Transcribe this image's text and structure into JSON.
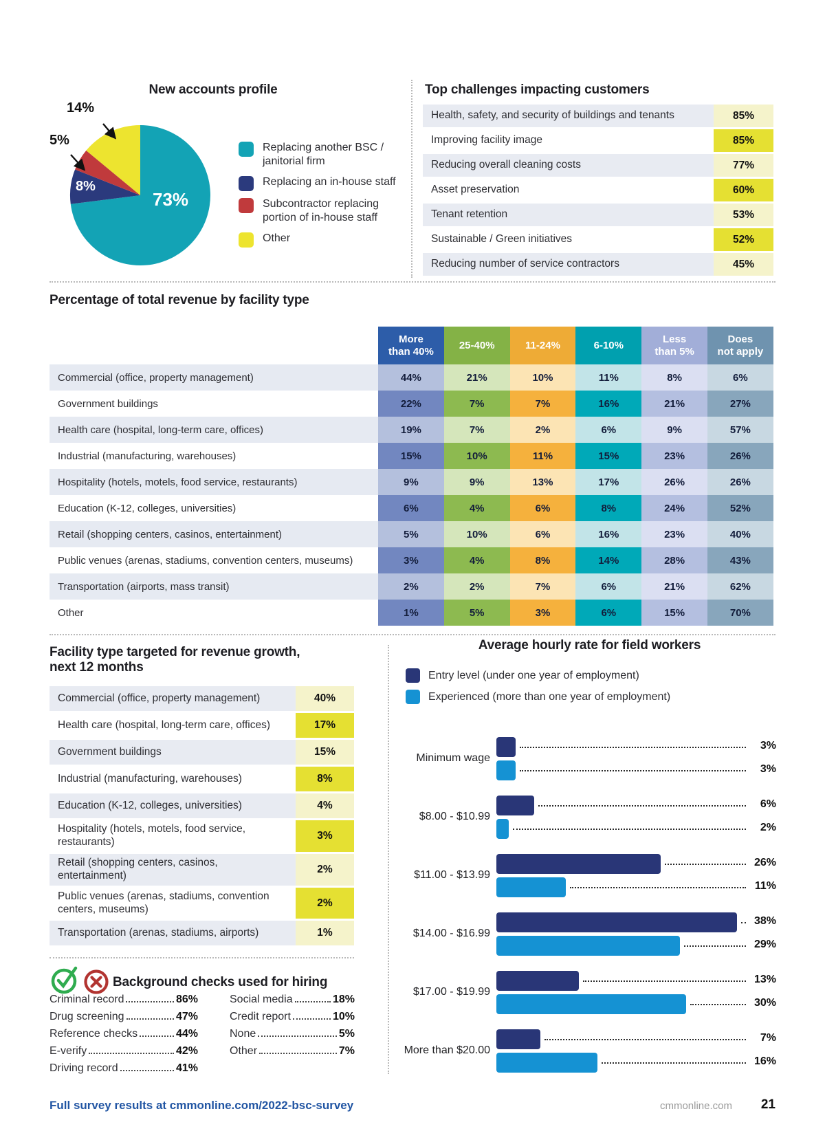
{
  "pie": {
    "title": "New accounts profile",
    "slices": [
      {
        "label": "Replacing another BSC / janitorial firm",
        "value": "73%",
        "color": "#13a3b5"
      },
      {
        "label": "Replacing an in-house staff",
        "value": "8%",
        "color": "#2b3a7d"
      },
      {
        "label": "Subcontractor replacing portion of in-house staff",
        "value": "5%",
        "color": "#c03a3c"
      },
      {
        "label": "Other",
        "value": "14%",
        "color": "#ede42f"
      }
    ]
  },
  "challenges": {
    "title": "Top challenges impacting customers",
    "rows": [
      {
        "label": "Health, safety, and security of buildings and tenants",
        "value": "85%"
      },
      {
        "label": "Improving facility image",
        "value": "85%"
      },
      {
        "label": "Reducing overall cleaning costs",
        "value": "77%"
      },
      {
        "label": "Asset preservation",
        "value": "60%"
      },
      {
        "label": "Tenant retention",
        "value": "53%"
      },
      {
        "label": "Sustainable / Green initiatives",
        "value": "52%"
      },
      {
        "label": "Reducing number of service contractors",
        "value": "45%"
      }
    ]
  },
  "revenue": {
    "title": "Percentage of total revenue by facility type",
    "columns": [
      "More\nthan 40%",
      "25-40%",
      "11-24%",
      "6-10%",
      "Less\nthan 5%",
      "Does\nnot apply"
    ],
    "header_colors": [
      "#2d5da9",
      "#84b246",
      "#eeab36",
      "#00a0af",
      "#a2aed8",
      "#6f93af"
    ],
    "strong_colors": [
      "#7287c0",
      "#8dba50",
      "#f5b13d",
      "#00a9b8",
      "#b4bfe0",
      "#88a6bc"
    ],
    "light_colors": [
      "#b4c0dd",
      "#d5e6bb",
      "#fce4b4",
      "#c2e4e8",
      "#dbdff2",
      "#c8d8e2"
    ],
    "label_row_bg": "#e6eaf2",
    "rows": [
      {
        "label": "Commercial (office, property management)",
        "values": [
          "44%",
          "21%",
          "10%",
          "11%",
          "8%",
          "6%"
        ]
      },
      {
        "label": "Government buildings",
        "values": [
          "22%",
          "7%",
          "7%",
          "16%",
          "21%",
          "27%"
        ]
      },
      {
        "label": "Health care (hospital, long-term care, offices)",
        "values": [
          "19%",
          "7%",
          "2%",
          "6%",
          "9%",
          "57%"
        ]
      },
      {
        "label": "Industrial (manufacturing, warehouses)",
        "values": [
          "15%",
          "10%",
          "11%",
          "15%",
          "23%",
          "26%"
        ]
      },
      {
        "label": "Hospitality (hotels, motels, food service, restaurants)",
        "values": [
          "9%",
          "9%",
          "13%",
          "17%",
          "26%",
          "26%"
        ]
      },
      {
        "label": "Education (K-12, colleges, universities)",
        "values": [
          "6%",
          "4%",
          "6%",
          "8%",
          "24%",
          "52%"
        ]
      },
      {
        "label": "Retail (shopping centers, casinos, entertainment)",
        "values": [
          "5%",
          "10%",
          "6%",
          "16%",
          "23%",
          "40%"
        ]
      },
      {
        "label": "Public venues (arenas, stadiums, convention centers, museums)",
        "values": [
          "3%",
          "4%",
          "8%",
          "14%",
          "28%",
          "43%"
        ]
      },
      {
        "label": "Transportation (airports, mass transit)",
        "values": [
          "2%",
          "2%",
          "7%",
          "6%",
          "21%",
          "62%"
        ]
      },
      {
        "label": "Other",
        "values": [
          "1%",
          "5%",
          "3%",
          "6%",
          "15%",
          "70%"
        ]
      }
    ]
  },
  "growth": {
    "title": "Facility type targeted for revenue growth,\nnext 12 months",
    "rows": [
      {
        "label": "Commercial (office, property management)",
        "value": "40%"
      },
      {
        "label": "Health care (hospital, long-term care, offices)",
        "value": "17%"
      },
      {
        "label": "Government buildings",
        "value": "15%"
      },
      {
        "label": "Industrial (manufacturing, warehouses)",
        "value": "8%"
      },
      {
        "label": "Education (K-12, colleges, universities)",
        "value": "4%"
      },
      {
        "label": "Hospitality (hotels, motels, food service, restaurants)",
        "value": "3%"
      },
      {
        "label": "Retail (shopping centers, casinos, entertainment)",
        "value": "2%"
      },
      {
        "label": "Public venues (arenas, stadiums, convention centers, museums)",
        "value": "2%"
      },
      {
        "label": "Transportation (arenas, stadiums, airports)",
        "value": "1%"
      }
    ]
  },
  "palette": {
    "row_gray": "#e8ebf2",
    "row_white": "#ffffff",
    "pale_yellow": "#f5f3cb",
    "bright_yellow": "#e5e032"
  },
  "background_checks": {
    "title": "Background checks used for hiring",
    "left": [
      {
        "label": "Criminal record",
        "value": "86%"
      },
      {
        "label": "Drug screening",
        "value": "47%"
      },
      {
        "label": "Reference checks",
        "value": "44%"
      },
      {
        "label": "E-verify",
        "value": "42%"
      },
      {
        "label": "Driving record",
        "value": "41%"
      }
    ],
    "right": [
      {
        "label": "Social media",
        "value": "18%"
      },
      {
        "label": "Credit report",
        "value": "10%"
      },
      {
        "label": "None",
        "value": "5%"
      },
      {
        "label": "Other",
        "value": "7%"
      }
    ]
  },
  "hourly": {
    "title": "Average hourly rate for field workers",
    "legend": [
      {
        "label": "Entry level (under one year of employment)",
        "color": "#293677"
      },
      {
        "label": "Experienced (more than one year of employment)",
        "color": "#1592d3"
      }
    ],
    "categories": [
      {
        "label": "Minimum wage",
        "entry": 3,
        "experienced": 3
      },
      {
        "label": "$8.00 - $10.99",
        "entry": 6,
        "experienced": 2
      },
      {
        "label": "$11.00 - $13.99",
        "entry": 26,
        "experienced": 11
      },
      {
        "label": "$14.00 - $16.99",
        "entry": 38,
        "experienced": 29
      },
      {
        "label": "$17.00 - $19.99",
        "entry": 13,
        "experienced": 30
      },
      {
        "label": "More than $20.00",
        "entry": 7,
        "experienced": 16
      }
    ]
  },
  "footer": {
    "left": "Full survey results at cmmonline.com/2022-bsc-survey",
    "site": "cmmonline.com",
    "page": "21"
  },
  "chart_data": [
    {
      "type": "pie",
      "title": "New accounts profile",
      "categories": [
        "Replacing another BSC / janitorial firm",
        "Replacing an in-house staff",
        "Subcontractor replacing portion of in-house staff",
        "Other"
      ],
      "values": [
        73,
        8,
        5,
        14
      ],
      "colors": [
        "#13a3b5",
        "#2b3a7d",
        "#c03a3c",
        "#ede42f"
      ],
      "legend_position": "right"
    },
    {
      "type": "table",
      "title": "Top challenges impacting customers",
      "categories": [
        "Health, safety, and security of buildings and tenants",
        "Improving facility image",
        "Reducing overall cleaning costs",
        "Asset preservation",
        "Tenant retention",
        "Sustainable / Green initiatives",
        "Reducing number of service contractors"
      ],
      "values": [
        85,
        85,
        77,
        60,
        53,
        52,
        45
      ]
    },
    {
      "type": "heatmap",
      "title": "Percentage of total revenue by facility type",
      "columns": [
        "More than 40%",
        "25-40%",
        "11-24%",
        "6-10%",
        "Less than 5%",
        "Does not apply"
      ],
      "rows": [
        "Commercial (office, property management)",
        "Government buildings",
        "Health care (hospital, long-term care, offices)",
        "Industrial (manufacturing, warehouses)",
        "Hospitality (hotels, motels, food service, restaurants)",
        "Education (K-12, colleges, universities)",
        "Retail (shopping centers, casinos, entertainment)",
        "Public venues (arenas, stadiums, convention centers, museums)",
        "Transportation (airports, mass transit)",
        "Other"
      ],
      "values": [
        [
          44,
          21,
          10,
          11,
          8,
          6
        ],
        [
          22,
          7,
          7,
          16,
          21,
          27
        ],
        [
          19,
          7,
          2,
          6,
          9,
          57
        ],
        [
          15,
          10,
          11,
          15,
          23,
          26
        ],
        [
          9,
          9,
          13,
          17,
          26,
          26
        ],
        [
          6,
          4,
          6,
          8,
          24,
          52
        ],
        [
          5,
          10,
          6,
          16,
          23,
          40
        ],
        [
          3,
          4,
          8,
          14,
          28,
          43
        ],
        [
          2,
          2,
          7,
          6,
          21,
          62
        ],
        [
          1,
          5,
          3,
          6,
          15,
          70
        ]
      ]
    },
    {
      "type": "table",
      "title": "Facility type targeted for revenue growth, next 12 months",
      "categories": [
        "Commercial (office, property management)",
        "Health care (hospital, long-term care, offices)",
        "Government buildings",
        "Industrial (manufacturing, warehouses)",
        "Education (K-12, colleges, universities)",
        "Hospitality (hotels, motels, food service, restaurants)",
        "Retail (shopping centers, casinos, entertainment)",
        "Public venues (arenas, stadiums, convention centers, museums)",
        "Transportation (arenas, stadiums, airports)"
      ],
      "values": [
        40,
        17,
        15,
        8,
        4,
        3,
        2,
        2,
        1
      ]
    },
    {
      "type": "table",
      "title": "Background checks used for hiring",
      "categories": [
        "Criminal record",
        "Drug screening",
        "Reference checks",
        "E-verify",
        "Driving record",
        "Social media",
        "Credit report",
        "None",
        "Other"
      ],
      "values": [
        86,
        47,
        44,
        42,
        41,
        18,
        10,
        5,
        7
      ]
    },
    {
      "type": "bar",
      "title": "Average hourly rate for field workers",
      "orientation": "horizontal",
      "categories": [
        "Minimum wage",
        "$8.00 - $10.99",
        "$11.00 - $13.99",
        "$14.00 - $16.99",
        "$17.00 - $19.99",
        "More than $20.00"
      ],
      "series": [
        {
          "name": "Entry level (under one year of employment)",
          "values": [
            3,
            6,
            26,
            38,
            13,
            7
          ]
        },
        {
          "name": "Experienced (more than one year of employment)",
          "values": [
            3,
            2,
            11,
            29,
            30,
            16
          ]
        }
      ],
      "xlim": [
        0,
        40
      ],
      "legend_position": "top-left"
    }
  ]
}
